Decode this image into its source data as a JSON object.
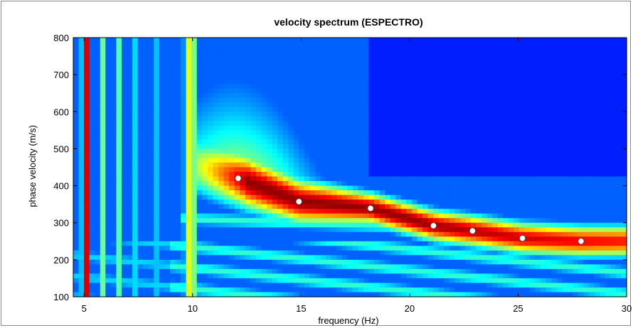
{
  "chart_data": {
    "type": "heatmap",
    "title": "velocity spectrum (ESPECTRO)",
    "xlabel": "frequency (Hz)",
    "ylabel": "phase velocity (m/s)",
    "xlim": [
      4.5,
      30
    ],
    "ylim": [
      100,
      800
    ],
    "x_ticks": [
      "5",
      "10",
      "15",
      "20",
      "25",
      "30"
    ],
    "y_ticks": [
      "100",
      "200",
      "300",
      "400",
      "500",
      "600",
      "700",
      "800"
    ],
    "colormap": "jet",
    "grid": false,
    "picked_points": [
      {
        "x": 12.1,
        "y": 420
      },
      {
        "x": 14.9,
        "y": 357
      },
      {
        "x": 18.2,
        "y": 339
      },
      {
        "x": 21.1,
        "y": 292
      },
      {
        "x": 22.9,
        "y": 278
      },
      {
        "x": 25.2,
        "y": 258
      },
      {
        "x": 27.9,
        "y": 250
      }
    ]
  }
}
